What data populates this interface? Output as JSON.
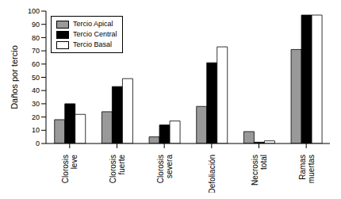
{
  "chart_data": {
    "type": "bar",
    "y_label": "Daños por tercio",
    "categories": [
      "Clorosis leve",
      "Clorosis fuerte",
      "Clorosis severa",
      "Defoliación",
      "Necrosis total",
      "Ramas muertas"
    ],
    "series": [
      {
        "name": "Tercio Apical",
        "color": "#999999",
        "values": [
          18,
          24,
          5,
          28,
          9,
          71
        ]
      },
      {
        "name": "Tercio Central",
        "color": "#000000",
        "values": [
          30,
          43,
          14,
          61,
          1,
          97
        ]
      },
      {
        "name": "Tercio Basal",
        "color": "#ffffff",
        "values": [
          22,
          49,
          17,
          73,
          2,
          97
        ]
      }
    ],
    "ylim": [
      0,
      100
    ],
    "yticks": [
      0,
      10,
      20,
      30,
      40,
      50,
      60,
      70,
      80,
      90,
      100
    ],
    "grid": false,
    "legend": "upper left"
  }
}
